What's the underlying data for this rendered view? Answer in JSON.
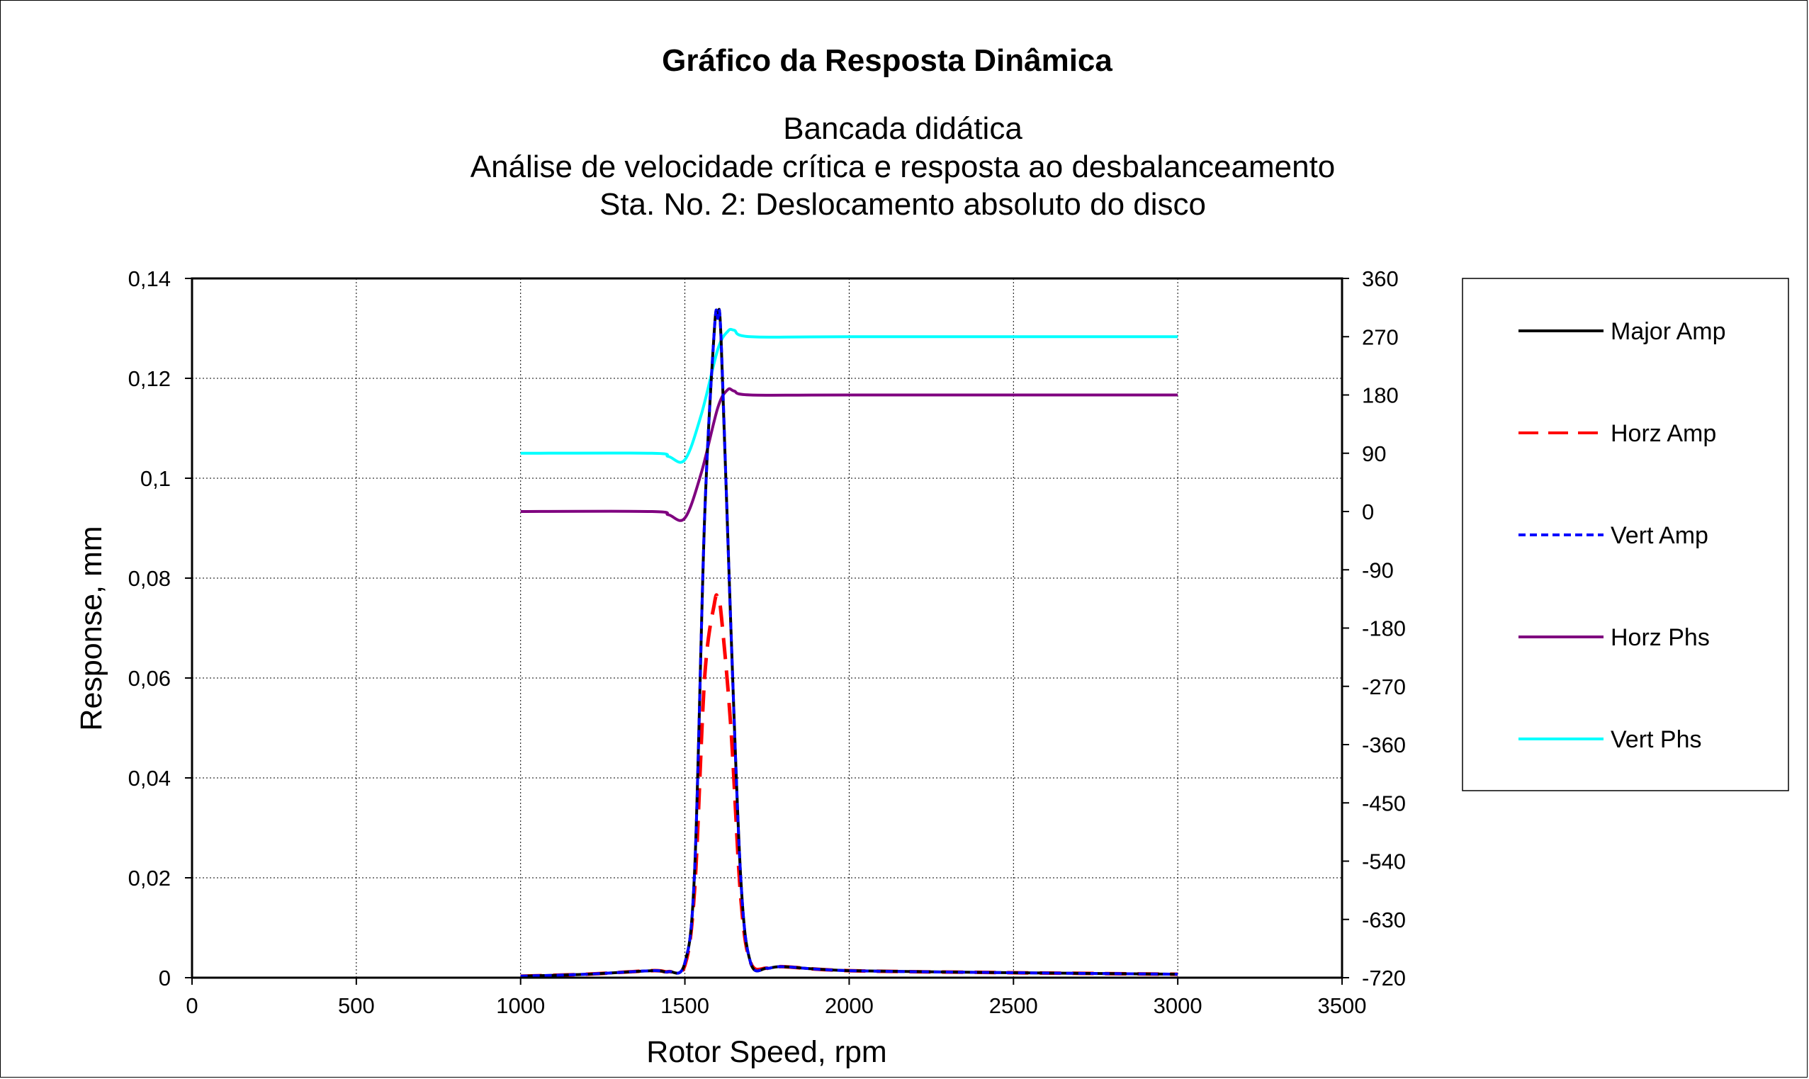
{
  "chart_data": {
    "type": "line",
    "title": "Gráfico da Resposta Dinâmica",
    "subtitle_lines": [
      "Bancada didática",
      "Análise de velocidade crítica e resposta ao desbalanceamento",
      "Sta. No. 2: Deslocamento absoluto do disco"
    ],
    "xlabel": "Rotor Speed, rpm",
    "ylabel": "Response, mm",
    "xlim": [
      0,
      3500
    ],
    "ylim": [
      0,
      0.14
    ],
    "y2lim": [
      -720,
      360
    ],
    "x_ticks": [
      "0",
      "500",
      "1000",
      "1500",
      "2000",
      "2500",
      "3000",
      "3500"
    ],
    "y_ticks": [
      "0",
      "0,02",
      "0,04",
      "0,06",
      "0,08",
      "0,1",
      "0,12",
      "0,14"
    ],
    "y2_ticks": [
      "-720",
      "-630",
      "-540",
      "-450",
      "-360",
      "-270",
      "-180",
      "-90",
      "0",
      "90",
      "180",
      "270",
      "360"
    ],
    "grid": true,
    "legend_position": "right",
    "series": [
      {
        "name": "Major Amp",
        "axis": "left",
        "color": "#000000",
        "dash": "solid",
        "x": [
          1000,
          1200,
          1400,
          1450,
          1500,
          1530,
          1560,
          1590,
          1600,
          1610,
          1640,
          1670,
          1700,
          1750,
          1800,
          2000,
          2500,
          3000
        ],
        "y": [
          0.0003,
          0.0007,
          0.0014,
          0.0012,
          0.003,
          0.022,
          0.092,
          0.13,
          0.132,
          0.128,
          0.07,
          0.02,
          0.003,
          0.0019,
          0.0022,
          0.0014,
          0.001,
          0.0007
        ]
      },
      {
        "name": "Horz Amp",
        "axis": "left",
        "color": "#ff0000",
        "dash": "long-dash",
        "x": [
          1000,
          1200,
          1400,
          1450,
          1500,
          1530,
          1560,
          1590,
          1600,
          1610,
          1640,
          1670,
          1700,
          1750,
          1800,
          2000,
          2500,
          3000
        ],
        "y": [
          0.0003,
          0.0007,
          0.0014,
          0.0012,
          0.0025,
          0.018,
          0.06,
          0.075,
          0.076,
          0.073,
          0.05,
          0.016,
          0.003,
          0.0019,
          0.0022,
          0.0014,
          0.001,
          0.0007
        ]
      },
      {
        "name": "Vert Amp",
        "axis": "left",
        "color": "#0000ff",
        "dash": "short-dash",
        "x": [
          1000,
          1200,
          1400,
          1450,
          1500,
          1530,
          1560,
          1590,
          1600,
          1610,
          1640,
          1670,
          1700,
          1750,
          1800,
          2000,
          2500,
          3000
        ],
        "y": [
          0.0003,
          0.0007,
          0.0014,
          0.0012,
          0.003,
          0.022,
          0.092,
          0.13,
          0.132,
          0.128,
          0.07,
          0.02,
          0.003,
          0.0019,
          0.0022,
          0.0014,
          0.001,
          0.0007
        ]
      },
      {
        "name": "Horz Phs",
        "axis": "right",
        "color": "#7f007f",
        "dash": "solid",
        "x": [
          1000,
          1400,
          1450,
          1500,
          1550,
          1600,
          1630,
          1650,
          1700,
          2000,
          3000
        ],
        "y": [
          0,
          0,
          -5,
          -10,
          60,
          160,
          188,
          186,
          180,
          180,
          180
        ]
      },
      {
        "name": "Vert Phs",
        "axis": "right",
        "color": "#00ffff",
        "dash": "solid",
        "x": [
          1000,
          1400,
          1450,
          1500,
          1550,
          1600,
          1630,
          1650,
          1700,
          2000,
          3000
        ],
        "y": [
          90,
          90,
          85,
          80,
          150,
          250,
          278,
          280,
          270,
          270,
          270
        ]
      }
    ]
  }
}
